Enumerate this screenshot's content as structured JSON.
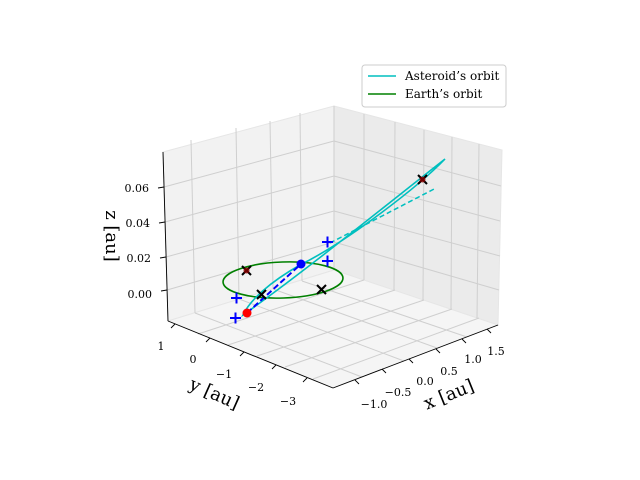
{
  "chart_data": {
    "type": "line3d",
    "xlabel": "x [au]",
    "ylabel": "y [au]",
    "zlabel": "z [au]",
    "x_ticks": [
      "−1.0",
      "−0.5",
      "0.0",
      "0.5",
      "1.0",
      "1.5"
    ],
    "y_ticks": [
      "1",
      "0",
      "−1",
      "−2",
      "−3"
    ],
    "z_ticks": [
      "0.00",
      "0.02",
      "0.04",
      "0.06"
    ],
    "xlim": [
      -1.3,
      1.7
    ],
    "ylim": [
      -3.6,
      1.3
    ],
    "zlim": [
      -0.015,
      0.08
    ],
    "grid": true,
    "legend_position": "top-right",
    "series": [
      {
        "name": "Asteroid’s orbit",
        "color": "#00bfbf"
      },
      {
        "name": "Earth’s orbit",
        "color": "#008000"
      }
    ]
  },
  "colors": {
    "asteroid": "#00bfbf",
    "earth": "#008000",
    "blue_marker": "#0000ff",
    "red_marker": "#ff0000",
    "cross": "#000000",
    "dark_red": "#8b0000"
  }
}
